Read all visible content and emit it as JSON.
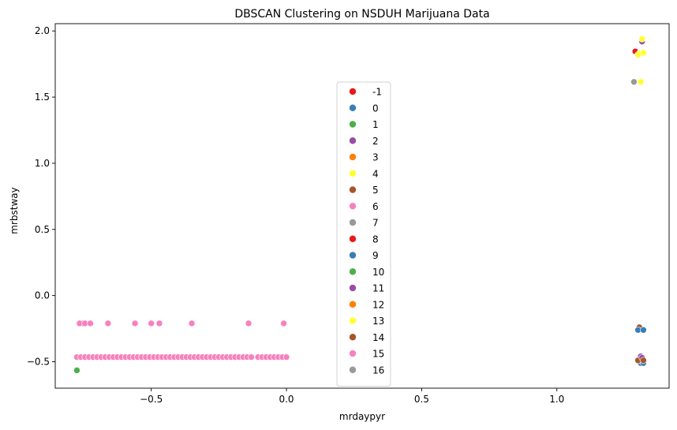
{
  "chart_data": {
    "type": "scatter",
    "title": "DBSCAN Clustering on NSDUH Marijuana Data",
    "xlabel": "mrdaypyr",
    "ylabel": "mrbstway",
    "xlim": [
      -0.855,
      1.415
    ],
    "ylim": [
      -0.7,
      2.055
    ],
    "xticks": [
      -0.5,
      0.0,
      0.5,
      1.0
    ],
    "xtick_labels": [
      "−0.5",
      "0.0",
      "0.5",
      "1.0"
    ],
    "yticks": [
      -0.5,
      0.0,
      0.5,
      1.0,
      1.5,
      2.0
    ],
    "ytick_labels": [
      "−0.5",
      "0.0",
      "0.5",
      "1.0",
      "1.5",
      "2.0"
    ],
    "grid": false,
    "legend_position": "center",
    "series": [
      {
        "name": "-1",
        "color": "#e41a1c",
        "points": [
          [
            1.29,
            1.845
          ],
          [
            -0.75,
            -0.21
          ]
        ]
      },
      {
        "name": "0",
        "color": "#377eb8",
        "points": [
          [
            1.31,
            -0.51
          ],
          [
            1.3,
            -0.49
          ]
        ]
      },
      {
        "name": "1",
        "color": "#4daf4a",
        "points": [
          [
            -0.775,
            -0.565
          ]
        ]
      },
      {
        "name": "2",
        "color": "#984ea3",
        "points": [
          [
            1.315,
            1.92
          ],
          [
            1.31,
            -0.46
          ]
        ]
      },
      {
        "name": "3",
        "color": "#ff7f00",
        "points": []
      },
      {
        "name": "4",
        "color": "#ffff33",
        "points": [
          [
            1.305,
            1.83
          ],
          [
            1.315,
            1.94
          ],
          [
            1.31,
            1.615
          ]
        ]
      },
      {
        "name": "5",
        "color": "#a65628",
        "points": [
          [
            1.305,
            -0.24
          ],
          [
            1.3,
            -0.49
          ]
        ]
      },
      {
        "name": "6",
        "color": "#f781bf",
        "points": [
          [
            -0.775,
            -0.465
          ],
          [
            -0.76,
            -0.465
          ],
          [
            -0.745,
            -0.465
          ],
          [
            -0.73,
            -0.465
          ],
          [
            -0.715,
            -0.465
          ],
          [
            -0.7,
            -0.465
          ],
          [
            -0.685,
            -0.465
          ],
          [
            -0.67,
            -0.465
          ],
          [
            -0.655,
            -0.465
          ],
          [
            -0.64,
            -0.465
          ],
          [
            -0.625,
            -0.465
          ],
          [
            -0.61,
            -0.465
          ],
          [
            -0.595,
            -0.465
          ],
          [
            -0.58,
            -0.465
          ],
          [
            -0.565,
            -0.465
          ],
          [
            -0.55,
            -0.465
          ],
          [
            -0.535,
            -0.465
          ],
          [
            -0.52,
            -0.465
          ],
          [
            -0.505,
            -0.465
          ],
          [
            -0.49,
            -0.465
          ],
          [
            -0.475,
            -0.465
          ],
          [
            -0.46,
            -0.465
          ],
          [
            -0.445,
            -0.465
          ],
          [
            -0.43,
            -0.465
          ],
          [
            -0.415,
            -0.465
          ],
          [
            -0.4,
            -0.465
          ],
          [
            -0.385,
            -0.465
          ],
          [
            -0.37,
            -0.465
          ],
          [
            -0.355,
            -0.465
          ],
          [
            -0.34,
            -0.465
          ],
          [
            -0.325,
            -0.465
          ],
          [
            -0.31,
            -0.465
          ],
          [
            -0.295,
            -0.465
          ],
          [
            -0.28,
            -0.465
          ],
          [
            -0.265,
            -0.465
          ],
          [
            -0.25,
            -0.465
          ],
          [
            -0.235,
            -0.465
          ],
          [
            -0.22,
            -0.465
          ],
          [
            -0.205,
            -0.465
          ],
          [
            -0.19,
            -0.465
          ],
          [
            -0.175,
            -0.465
          ],
          [
            -0.16,
            -0.465
          ],
          [
            -0.145,
            -0.465
          ],
          [
            -0.13,
            -0.465
          ],
          [
            -0.105,
            -0.465
          ],
          [
            -0.09,
            -0.465
          ],
          [
            -0.075,
            -0.465
          ],
          [
            -0.06,
            -0.465
          ],
          [
            -0.045,
            -0.465
          ],
          [
            -0.03,
            -0.465
          ],
          [
            -0.015,
            -0.465
          ],
          [
            0.0,
            -0.465
          ],
          [
            -0.765,
            -0.21
          ],
          [
            -0.745,
            -0.21
          ],
          [
            -0.725,
            -0.21
          ],
          [
            -0.66,
            -0.21
          ],
          [
            -0.56,
            -0.21
          ],
          [
            -0.5,
            -0.21
          ],
          [
            -0.47,
            -0.21
          ],
          [
            -0.35,
            -0.21
          ],
          [
            -0.14,
            -0.21
          ],
          [
            -0.01,
            -0.21
          ]
        ]
      },
      {
        "name": "7",
        "color": "#999999",
        "points": [
          [
            1.285,
            1.615
          ]
        ]
      },
      {
        "name": "8",
        "color": "#e41a1c",
        "points": []
      },
      {
        "name": "9",
        "color": "#377eb8",
        "points": [
          [
            1.3,
            -0.26
          ],
          [
            1.32,
            -0.26
          ],
          [
            1.32,
            -0.51
          ]
        ]
      },
      {
        "name": "10",
        "color": "#4daf4a",
        "points": []
      },
      {
        "name": "11",
        "color": "#984ea3",
        "points": [
          [
            1.315,
            -0.47
          ]
        ]
      },
      {
        "name": "12",
        "color": "#ff7f00",
        "points": []
      },
      {
        "name": "13",
        "color": "#ffff33",
        "points": [
          [
            1.32,
            1.835
          ],
          [
            1.3,
            1.82
          ]
        ]
      },
      {
        "name": "14",
        "color": "#a65628",
        "points": [
          [
            1.32,
            -0.49
          ]
        ]
      },
      {
        "name": "15",
        "color": "#f781bf",
        "points": []
      },
      {
        "name": "16",
        "color": "#999999",
        "points": []
      }
    ]
  }
}
